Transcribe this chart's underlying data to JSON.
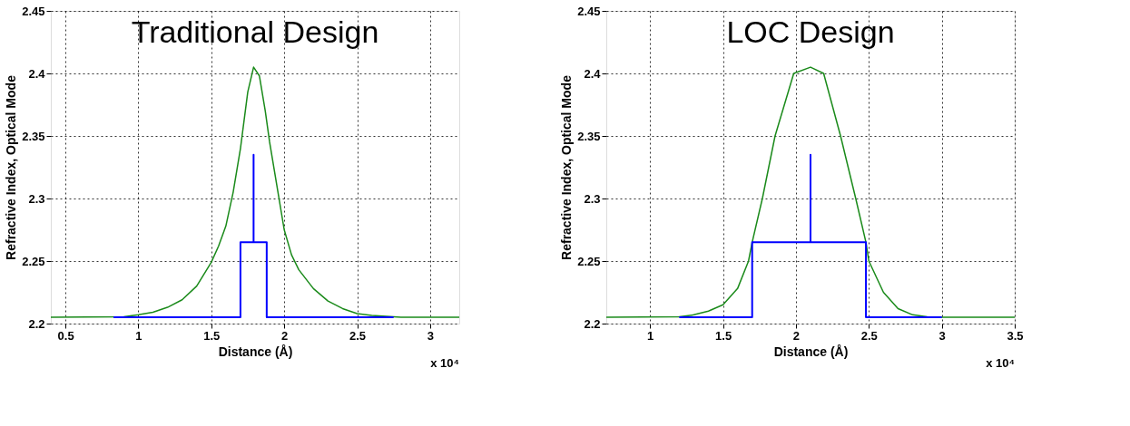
{
  "chart_data": [
    {
      "type": "line",
      "title": "Traditional Design",
      "xlabel": "Distance (Å)",
      "ylabel": "Refractive Index, Optical Mode",
      "xlim": [
        0.4,
        3.2
      ],
      "xticks": [
        0.5,
        1,
        1.5,
        2,
        2.5,
        3
      ],
      "ylim": [
        2.2,
        2.45
      ],
      "yticks": [
        2.2,
        2.25,
        2.3,
        2.35,
        2.4,
        2.45
      ],
      "grid": true,
      "annotations": [
        "x 10⁴"
      ],
      "series": [
        {
          "color": "#1a8a1a",
          "x": [
            0.4,
            0.9,
            1.0,
            1.1,
            1.2,
            1.3,
            1.4,
            1.5,
            1.55,
            1.6,
            1.65,
            1.7,
            1.75,
            1.79,
            1.83,
            1.87,
            1.9,
            1.95,
            2.0,
            2.05,
            2.1,
            2.2,
            2.3,
            2.4,
            2.5,
            2.6,
            2.8,
            3.2
          ],
          "values": [
            2.205,
            2.2055,
            2.207,
            2.209,
            2.213,
            2.219,
            2.23,
            2.249,
            2.262,
            2.278,
            2.305,
            2.34,
            2.385,
            2.405,
            2.398,
            2.37,
            2.345,
            2.31,
            2.275,
            2.255,
            2.243,
            2.228,
            2.218,
            2.212,
            2.208,
            2.2065,
            2.205,
            2.205
          ]
        },
        {
          "color": "#0000ff",
          "x": [
            0.83,
            1.7,
            1.7,
            1.79,
            1.79,
            1.79,
            1.88,
            1.88,
            2.75
          ],
          "values": [
            2.205,
            2.205,
            2.265,
            2.265,
            2.335,
            2.265,
            2.265,
            2.205,
            2.205
          ]
        }
      ]
    },
    {
      "type": "line",
      "title": "LOC Design",
      "xlabel": "Distance (Å)",
      "ylabel": "Refractive Index, Optical Mode",
      "xlim": [
        0.7,
        3.5
      ],
      "xticks": [
        1,
        1.5,
        2,
        2.5,
        3,
        3.5
      ],
      "ylim": [
        2.2,
        2.45
      ],
      "yticks": [
        2.2,
        2.25,
        2.3,
        2.35,
        2.4,
        2.45
      ],
      "grid": true,
      "annotations": [
        "x 10⁴"
      ],
      "series": [
        {
          "color": "#1a8a1a",
          "x": [
            0.7,
            1.2,
            1.3,
            1.4,
            1.5,
            1.6,
            1.675,
            1.7,
            1.77,
            1.857,
            1.985,
            2.1,
            2.19,
            2.306,
            2.41,
            2.48,
            2.5,
            2.6,
            2.7,
            2.8,
            2.9,
            3.0,
            3.5
          ],
          "values": [
            2.205,
            2.2055,
            2.207,
            2.21,
            2.215,
            2.228,
            2.25,
            2.265,
            2.3,
            2.35,
            2.4,
            2.405,
            2.4,
            2.35,
            2.3,
            2.265,
            2.25,
            2.225,
            2.212,
            2.207,
            2.2055,
            2.205,
            2.205
          ]
        },
        {
          "color": "#0000ff",
          "x": [
            1.2,
            1.7,
            1.7,
            2.1,
            2.1,
            2.1,
            2.48,
            2.48,
            3.0
          ],
          "values": [
            2.205,
            2.205,
            2.265,
            2.265,
            2.335,
            2.265,
            2.265,
            2.205,
            2.205
          ]
        }
      ]
    }
  ]
}
